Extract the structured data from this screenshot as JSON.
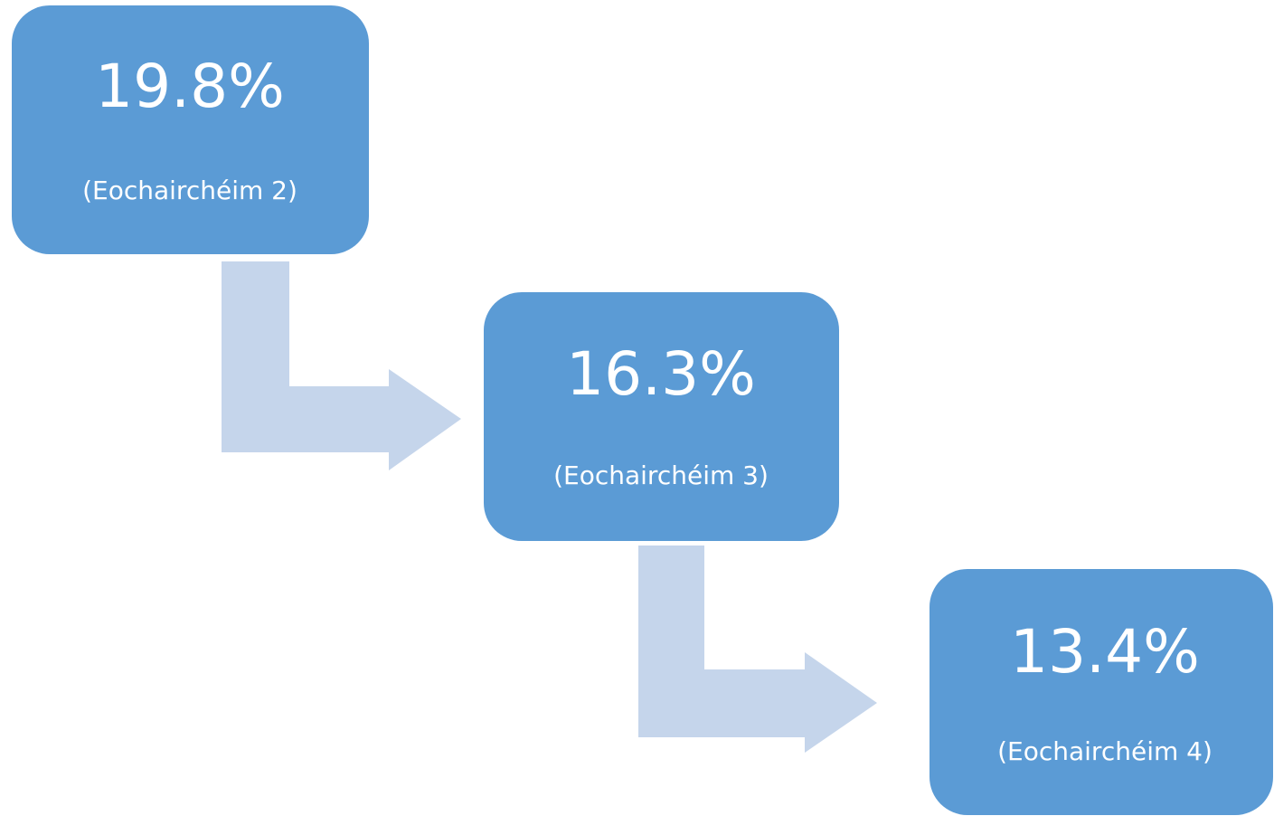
{
  "nodes": [
    {
      "value": "19.8%",
      "label": "(Eochairchéim 2)"
    },
    {
      "value": "16.3%",
      "label": "(Eochairchéim 3)"
    },
    {
      "value": "13.4%",
      "label": "(Eochairchéim 4)"
    }
  ]
}
